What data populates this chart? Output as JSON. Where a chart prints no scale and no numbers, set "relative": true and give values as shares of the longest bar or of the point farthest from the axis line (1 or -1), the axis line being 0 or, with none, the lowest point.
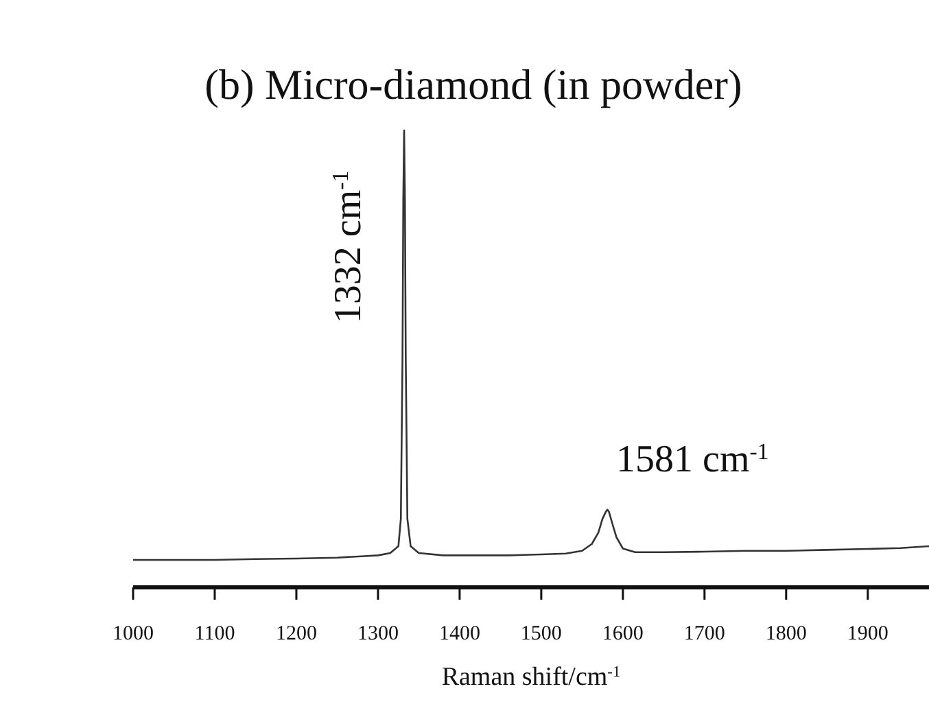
{
  "chart_data": {
    "type": "line",
    "title": "(b) Micro-diamond (in powder)",
    "xlabel": "Raman shift/cm$^{-1}$",
    "relative": true,
    "tick_labels": "x",
    "xlim": [
      1000,
      1975
    ],
    "xticks": [
      1000,
      1100,
      1200,
      1300,
      1400,
      1500,
      1600,
      1700,
      1800,
      1900
    ],
    "marker": "none",
    "line_style": "solid",
    "grid": false,
    "annotations": [
      {
        "text": "1332 cm$^{-1}$",
        "x": 1332,
        "y": 1
      },
      {
        "text": "1581 cm$^{-1}$",
        "x": 1581,
        "y": 0.17
      }
    ],
    "series": [
      {
        "color": "#333333",
        "x": [
          1000,
          1050,
          1100,
          1150,
          1200,
          1250,
          1280,
          1300,
          1315,
          1325,
          1328,
          1330,
          1331,
          1332,
          1333,
          1334,
          1336,
          1340,
          1350,
          1380,
          1420,
          1460,
          1500,
          1530,
          1550,
          1562,
          1570,
          1575,
          1579,
          1581,
          1583,
          1587,
          1592,
          1600,
          1615,
          1650,
          1700,
          1750,
          1800,
          1850,
          1900,
          1940,
          1975
        ],
        "values": [
          0.06,
          0.06,
          0.06,
          0.062,
          0.063,
          0.065,
          0.068,
          0.07,
          0.075,
          0.09,
          0.15,
          0.5,
          0.85,
          1,
          0.85,
          0.5,
          0.15,
          0.09,
          0.075,
          0.07,
          0.07,
          0.07,
          0.072,
          0.074,
          0.08,
          0.095,
          0.12,
          0.15,
          0.165,
          0.17,
          0.165,
          0.14,
          0.11,
          0.085,
          0.077,
          0.077,
          0.078,
          0.08,
          0.08,
          0.082,
          0.084,
          0.086,
          0.09
        ]
      }
    ]
  }
}
